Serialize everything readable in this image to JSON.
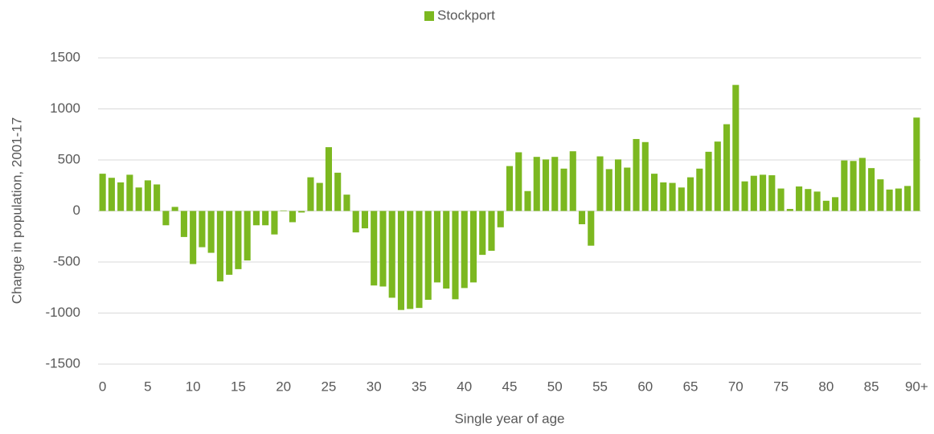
{
  "chart_data": {
    "type": "bar",
    "x_label": "Single year of age",
    "y_label": "Change in population, 2001-17",
    "categories": [
      "0",
      null,
      null,
      null,
      null,
      "5",
      null,
      null,
      null,
      null,
      "10",
      null,
      null,
      null,
      null,
      "15",
      null,
      null,
      null,
      null,
      "20",
      null,
      null,
      null,
      null,
      "25",
      null,
      null,
      null,
      null,
      "30",
      null,
      null,
      null,
      null,
      "35",
      null,
      null,
      null,
      null,
      "40",
      null,
      null,
      null,
      null,
      "45",
      null,
      null,
      null,
      null,
      "50",
      null,
      null,
      null,
      null,
      "55",
      null,
      null,
      null,
      null,
      "60",
      null,
      null,
      null,
      null,
      "65",
      null,
      null,
      null,
      null,
      "70",
      null,
      null,
      null,
      null,
      "75",
      null,
      null,
      null,
      null,
      "80",
      null,
      null,
      null,
      null,
      "85",
      null,
      null,
      null,
      null,
      "90+"
    ],
    "series": [
      {
        "name": "Stockport",
        "color": "#7cb820",
        "values": [
          365,
          325,
          280,
          355,
          230,
          300,
          260,
          -140,
          40,
          -255,
          -520,
          -355,
          -410,
          -690,
          -625,
          -570,
          -485,
          -140,
          -140,
          -230,
          5,
          -110,
          -15,
          330,
          275,
          625,
          375,
          160,
          -210,
          -170,
          -730,
          -740,
          -850,
          -970,
          -960,
          -950,
          -870,
          -700,
          -760,
          -865,
          -755,
          -700,
          -430,
          -390,
          -160,
          440,
          575,
          195,
          530,
          505,
          530,
          415,
          585,
          -130,
          -340,
          535,
          410,
          505,
          425,
          705,
          675,
          365,
          280,
          275,
          230,
          330,
          415,
          580,
          680,
          850,
          1235,
          290,
          345,
          355,
          350,
          220,
          20,
          240,
          215,
          190,
          100,
          135,
          495,
          490,
          520,
          420,
          310,
          210,
          220,
          245,
          915
        ]
      }
    ],
    "ylim": [
      -1500,
      1500
    ],
    "yticks": [
      -1500,
      -1000,
      -500,
      0,
      500,
      1000,
      1500
    ],
    "grid": true,
    "legend": "top"
  }
}
